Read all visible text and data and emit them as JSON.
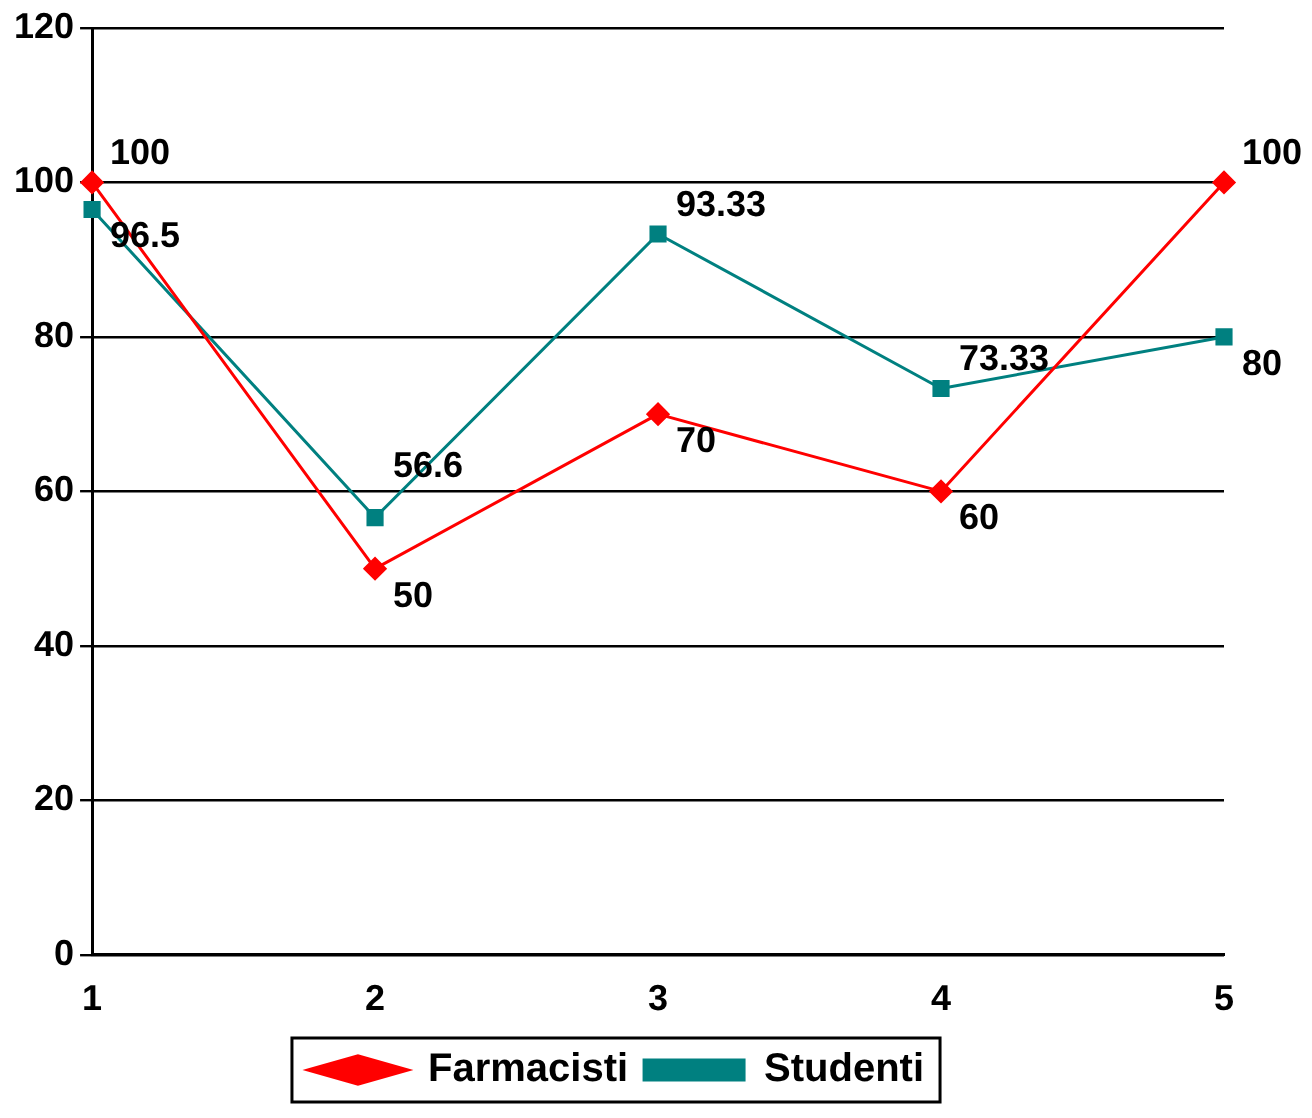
{
  "chart_data": {
    "type": "line",
    "categories": [
      "1",
      "2",
      "3",
      "4",
      "5"
    ],
    "series": [
      {
        "name": "Farmacisti",
        "color": "#ff0000",
        "marker": "diamond",
        "values": [
          100,
          50,
          70,
          60,
          100
        ]
      },
      {
        "name": "Studenti",
        "color": "#008080",
        "marker": "square",
        "values": [
          96.5,
          56.6,
          93.33,
          73.33,
          80
        ]
      }
    ],
    "ylim": [
      0,
      120
    ],
    "yticks": [
      0,
      20,
      40,
      60,
      80,
      100,
      120
    ],
    "grid": "y",
    "legend": "bottom",
    "data_labels": true
  }
}
